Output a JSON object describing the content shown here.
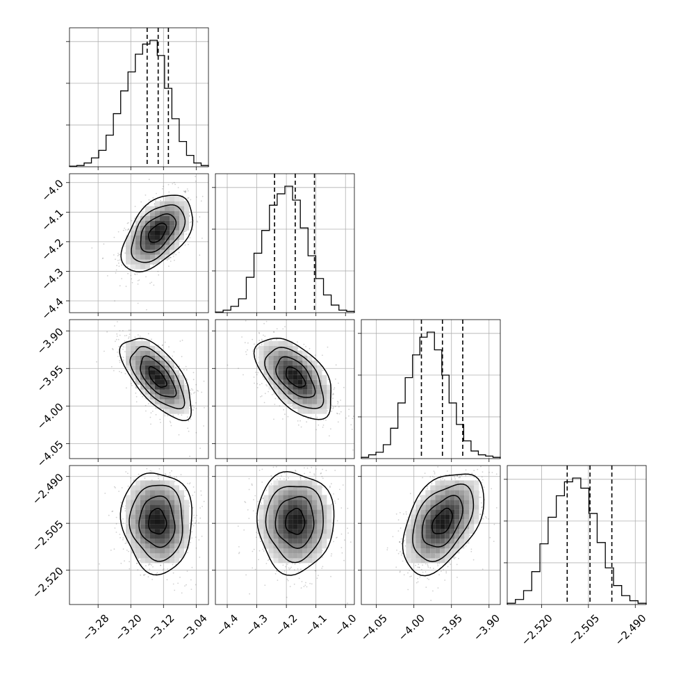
{
  "chart_data": {
    "type": "corner",
    "title": "",
    "grid": true,
    "colors": {
      "line": "#000000",
      "grid": "#b0b0b0",
      "points": "#555555"
    },
    "parameters": [
      {
        "axis_range": [
          -3.35,
          -3.01
        ],
        "ticks": [
          -3.28,
          -3.2,
          -3.12,
          -3.04
        ],
        "tick_labels": [
          "−3.28",
          "−3.20",
          "−3.12",
          "−3.04"
        ],
        "median": -3.133,
        "quantiles": [
          -3.16,
          -3.133,
          -3.108
        ],
        "histogram": [
          0.5,
          1,
          3,
          7,
          13,
          25,
          42,
          60,
          75,
          89,
          97,
          100,
          88,
          62,
          38,
          20,
          9,
          3,
          1
        ],
        "y_ticks_rel": [
          0.33,
          0.66,
          0.99
        ]
      },
      {
        "axis_range": [
          -4.44,
          -3.97
        ],
        "ticks": [
          -4.4,
          -4.3,
          -4.2,
          -4.1,
          -4.0
        ],
        "tick_labels": [
          "−4.4",
          "−4.3",
          "−4.2",
          "−4.1",
          "−4.0"
        ],
        "median": -4.17,
        "quantiles": [
          -4.24,
          -4.17,
          -4.105
        ],
        "histogram": [
          0.5,
          2,
          5,
          11,
          28,
          47,
          65,
          85,
          94,
          100,
          89,
          67,
          45,
          27,
          14,
          6,
          2,
          1
        ],
        "y_ticks_rel": [
          0.33,
          0.66,
          0.99
        ]
      },
      {
        "axis_range": [
          -4.07,
          -3.885
        ],
        "ticks": [
          -4.05,
          -4.0,
          -3.95,
          -3.9
        ],
        "tick_labels": [
          "−4.05",
          "−4.00",
          "−3.95",
          "−3.90"
        ],
        "median": -3.962,
        "quantiles": [
          -3.99,
          -3.962,
          -3.935
        ],
        "histogram": [
          1,
          3,
          5,
          11,
          24,
          44,
          64,
          82,
          96,
          100,
          86,
          66,
          44,
          27,
          14,
          6,
          3,
          2,
          1
        ],
        "y_ticks_rel": [
          0.33,
          0.66,
          0.99
        ]
      },
      {
        "axis_range": [
          -2.531,
          -2.4865
        ],
        "ticks": [
          -2.52,
          -2.505,
          -2.49
        ],
        "tick_labels": [
          "−2.520",
          "−2.505",
          "−2.490"
        ],
        "median": -2.5045,
        "quantiles": [
          -2.5118,
          -2.5045,
          -2.4975
        ],
        "histogram": [
          1,
          4,
          11,
          26,
          48,
          69,
          86,
          97,
          100,
          92,
          72,
          49,
          29,
          15,
          7,
          3,
          1
        ],
        "y_ticks_rel": [
          0.33,
          0.66,
          0.99
        ]
      }
    ],
    "scatter_panels": [
      {
        "x": 0,
        "y": 1,
        "center": [
          -3.135,
          -4.17
        ],
        "sd": [
          0.04,
          0.06
        ],
        "corr": 0.5
      },
      {
        "x": 0,
        "y": 2,
        "center": [
          -3.135,
          -3.962
        ],
        "sd": [
          0.04,
          0.025
        ],
        "corr": -0.65
      },
      {
        "x": 1,
        "y": 2,
        "center": [
          -4.17,
          -3.962
        ],
        "sd": [
          0.06,
          0.025
        ],
        "corr": -0.55
      },
      {
        "x": 0,
        "y": 3,
        "center": [
          -3.135,
          -2.5045
        ],
        "sd": [
          0.04,
          0.0075
        ],
        "corr": -0.05
      },
      {
        "x": 1,
        "y": 3,
        "center": [
          -4.17,
          -2.5045
        ],
        "sd": [
          0.06,
          0.0075
        ],
        "corr": 0.0
      },
      {
        "x": 2,
        "y": 3,
        "center": [
          -3.962,
          -2.5045
        ],
        "sd": [
          0.025,
          0.0075
        ],
        "corr": 0.45
      }
    ]
  }
}
